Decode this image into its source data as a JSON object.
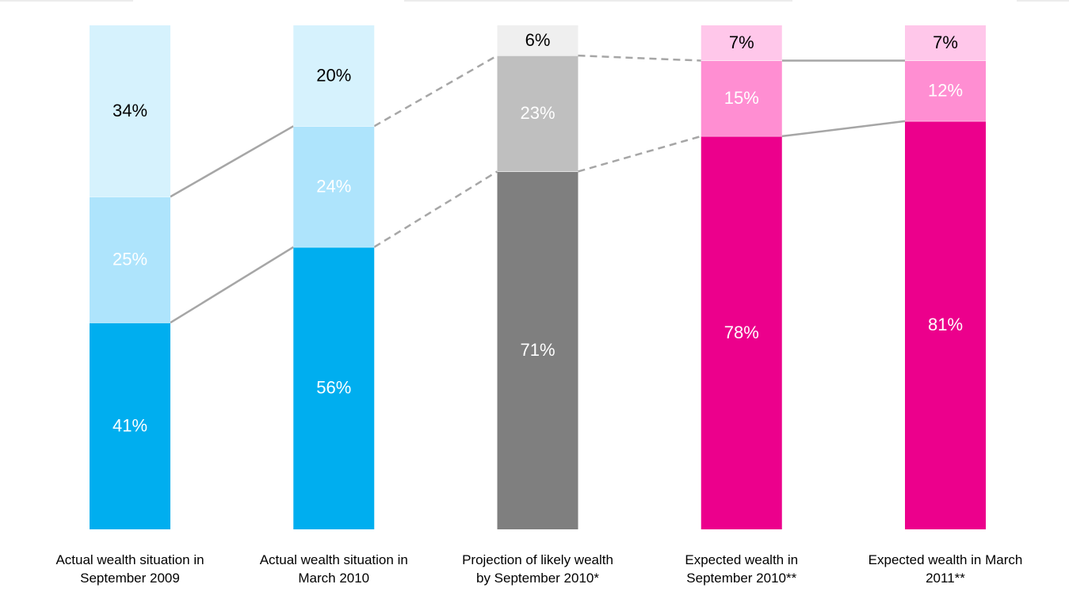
{
  "chart_data": {
    "type": "bar",
    "stacked": true,
    "orientation": "vertical",
    "categories": [
      [
        "Actual wealth situation in",
        "September 2009"
      ],
      [
        "Actual wealth situation in",
        "March 2010"
      ],
      [
        "Projection of likely wealth",
        "by September 2010*"
      ],
      [
        "Expected wealth in",
        "September 2010**"
      ],
      [
        "Expected wealth in March",
        "2011**"
      ]
    ],
    "stacks": [
      [
        {
          "value": 41,
          "label": "41%",
          "color": "#00AEEF",
          "text_color": "#FFFFFF"
        },
        {
          "value": 25,
          "label": "25%",
          "color": "#AEE4FC",
          "text_color": "#FFFFFF"
        },
        {
          "value": 34,
          "label": "34%",
          "color": "#D6F2FD",
          "text_color": "#000000"
        }
      ],
      [
        {
          "value": 56,
          "label": "56%",
          "color": "#00AEEF",
          "text_color": "#FFFFFF"
        },
        {
          "value": 24,
          "label": "24%",
          "color": "#AEE4FC",
          "text_color": "#FFFFFF"
        },
        {
          "value": 20,
          "label": "20%",
          "color": "#D6F2FD",
          "text_color": "#000000"
        }
      ],
      [
        {
          "value": 71,
          "label": "71%",
          "color": "#7F7F7F",
          "text_color": "#FFFFFF"
        },
        {
          "value": 23,
          "label": "23%",
          "color": "#BFBFBF",
          "text_color": "#FFFFFF"
        },
        {
          "value": 6,
          "label": "6%",
          "color": "#EFEFEF",
          "text_color": "#000000"
        }
      ],
      [
        {
          "value": 78,
          "label": "78%",
          "color": "#EC008C",
          "text_color": "#FFFFFF"
        },
        {
          "value": 15,
          "label": "15%",
          "color": "#FF8ED2",
          "text_color": "#FFFFFF"
        },
        {
          "value": 7,
          "label": "7%",
          "color": "#FFC7EA",
          "text_color": "#000000"
        }
      ],
      [
        {
          "value": 81,
          "label": "81%",
          "color": "#EC008C",
          "text_color": "#FFFFFF"
        },
        {
          "value": 12,
          "label": "12%",
          "color": "#FF8ED2",
          "text_color": "#FFFFFF"
        },
        {
          "value": 7,
          "label": "7%",
          "color": "#FFC7EA",
          "text_color": "#000000"
        }
      ]
    ],
    "connectors": [
      {
        "from": 0,
        "to": 1,
        "style": "solid"
      },
      {
        "from": 1,
        "to": 2,
        "style": "dashed"
      },
      {
        "from": 2,
        "to": 3,
        "style": "dashed"
      },
      {
        "from": 3,
        "to": 4,
        "style": "solid"
      }
    ],
    "connector_color": "#A6A6A6",
    "ylim": [
      0,
      100
    ],
    "grid": false,
    "legend": "none"
  }
}
